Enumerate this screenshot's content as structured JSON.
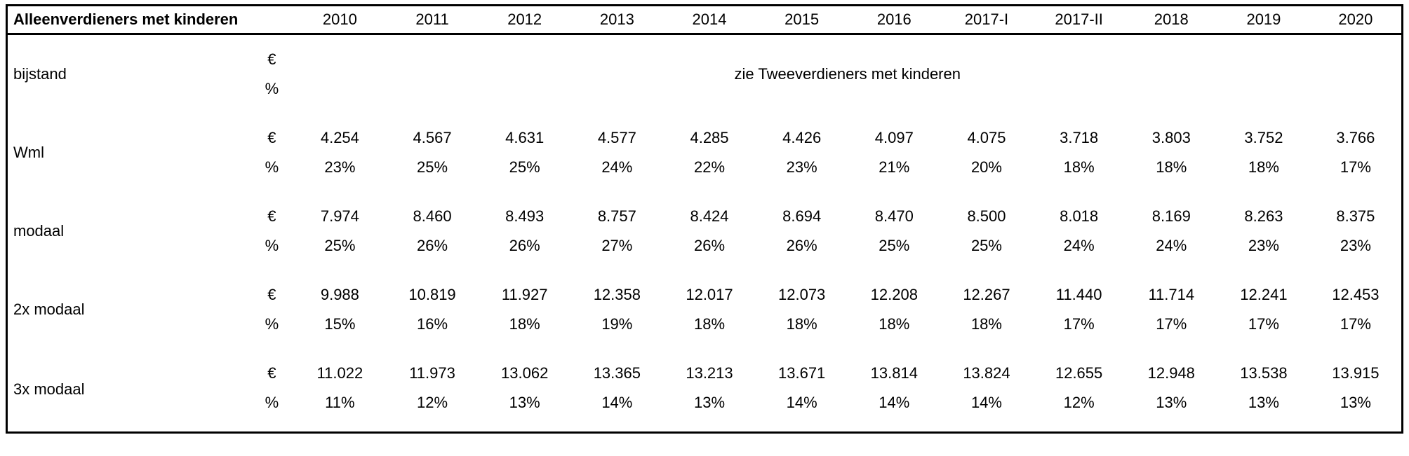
{
  "table": {
    "title": "Alleenverdieners met kinderen",
    "unit_euro": "€",
    "unit_pct": "%",
    "years": [
      "2010",
      "2011",
      "2012",
      "2013",
      "2014",
      "2015",
      "2016",
      "2017-I",
      "2017-II",
      "2018",
      "2019",
      "2020"
    ],
    "rows": [
      {
        "label": "bijstand",
        "note": "zie Tweeverdieners met kinderen",
        "euro": [],
        "pct": []
      },
      {
        "label": "Wml",
        "euro": [
          "4.254",
          "4.567",
          "4.631",
          "4.577",
          "4.285",
          "4.426",
          "4.097",
          "4.075",
          "3.718",
          "3.803",
          "3.752",
          "3.766"
        ],
        "pct": [
          "23%",
          "25%",
          "25%",
          "24%",
          "22%",
          "23%",
          "21%",
          "20%",
          "18%",
          "18%",
          "18%",
          "17%"
        ]
      },
      {
        "label": "modaal",
        "euro": [
          "7.974",
          "8.460",
          "8.493",
          "8.757",
          "8.424",
          "8.694",
          "8.470",
          "8.500",
          "8.018",
          "8.169",
          "8.263",
          "8.375"
        ],
        "pct": [
          "25%",
          "26%",
          "26%",
          "27%",
          "26%",
          "26%",
          "25%",
          "25%",
          "24%",
          "24%",
          "23%",
          "23%"
        ]
      },
      {
        "label": "2x modaal",
        "euro": [
          "9.988",
          "10.819",
          "11.927",
          "12.358",
          "12.017",
          "12.073",
          "12.208",
          "12.267",
          "11.440",
          "11.714",
          "12.241",
          "12.453"
        ],
        "pct": [
          "15%",
          "16%",
          "18%",
          "19%",
          "18%",
          "18%",
          "18%",
          "18%",
          "17%",
          "17%",
          "17%",
          "17%"
        ]
      },
      {
        "label": "3x modaal",
        "euro": [
          "11.022",
          "11.973",
          "13.062",
          "13.365",
          "13.213",
          "13.671",
          "13.814",
          "13.824",
          "12.655",
          "12.948",
          "13.538",
          "13.915"
        ],
        "pct": [
          "11%",
          "12%",
          "13%",
          "14%",
          "13%",
          "14%",
          "14%",
          "14%",
          "12%",
          "13%",
          "13%",
          "13%"
        ]
      }
    ]
  },
  "colors": {
    "text": "#000000",
    "background": "#ffffff",
    "border": "#000000"
  }
}
